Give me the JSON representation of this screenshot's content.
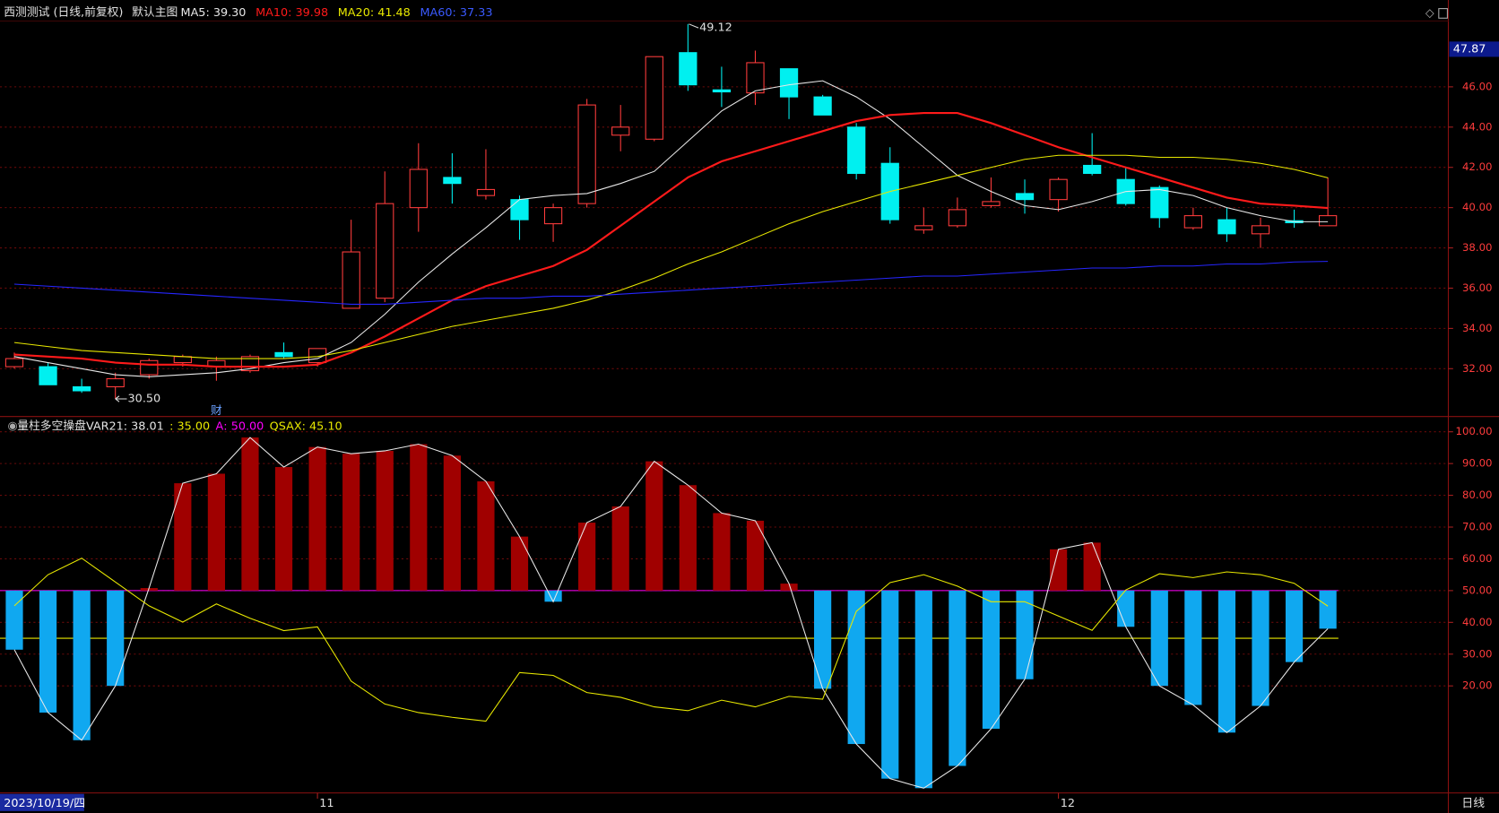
{
  "chart_data": [
    {
      "type": "candlestick",
      "title": "西测测试 (日线,前复权)",
      "subtitle": "默认主图",
      "period": "日线",
      "categories": [
        "2023/10/19/四",
        null,
        null,
        null,
        null,
        null,
        null,
        null,
        null,
        "11",
        null,
        null,
        null,
        null,
        null,
        null,
        null,
        null,
        null,
        null,
        null,
        null,
        null,
        null,
        null,
        null,
        null,
        null,
        null,
        null,
        null,
        "12",
        null,
        null,
        null,
        null,
        null,
        null,
        null,
        null
      ],
      "open": [
        32.1,
        32.1,
        31.1,
        31.1,
        31.7,
        32.3,
        32.1,
        31.9,
        32.8,
        32.3,
        35.0,
        35.5,
        40.0,
        41.5,
        40.6,
        40.4,
        39.2,
        40.2,
        43.6,
        43.4,
        47.7,
        45.85,
        45.7,
        46.9,
        45.5,
        44.0,
        42.2,
        38.9,
        39.1,
        40.1,
        40.7,
        40.4,
        42.1,
        41.4,
        41.0,
        39.0,
        39.4,
        38.7,
        39.35,
        39.1
      ],
      "close": [
        32.5,
        31.2,
        30.9,
        31.5,
        32.4,
        32.6,
        32.4,
        32.6,
        32.6,
        33.0,
        37.8,
        40.2,
        41.9,
        41.2,
        40.9,
        39.4,
        40.0,
        45.1,
        44.0,
        47.5,
        46.1,
        45.75,
        47.2,
        45.5,
        44.6,
        41.7,
        39.4,
        39.1,
        39.9,
        40.3,
        40.4,
        41.4,
        41.7,
        40.2,
        39.5,
        39.6,
        38.7,
        39.1,
        39.25,
        39.6
      ],
      "high": [
        32.8,
        32.3,
        31.5,
        31.8,
        32.5,
        32.7,
        32.6,
        32.7,
        33.3,
        33.0,
        39.4,
        41.8,
        43.2,
        42.7,
        42.9,
        40.6,
        40.2,
        45.4,
        45.1,
        47.5,
        49.12,
        47.0,
        47.8,
        46.9,
        45.6,
        44.2,
        43.0,
        40.0,
        40.5,
        41.5,
        41.4,
        41.5,
        43.7,
        42.0,
        41.1,
        40.0,
        40.0,
        39.5,
        39.9,
        41.5
      ],
      "low": [
        32.0,
        31.2,
        30.8,
        30.5,
        31.5,
        32.1,
        31.4,
        31.8,
        32.5,
        32.1,
        35.0,
        35.3,
        38.8,
        40.2,
        40.4,
        38.4,
        38.3,
        40.0,
        42.8,
        43.3,
        45.8,
        45.0,
        45.1,
        44.4,
        44.6,
        41.4,
        39.2,
        38.7,
        39.0,
        40.0,
        39.7,
        39.8,
        41.6,
        40.1,
        39.0,
        38.9,
        38.3,
        38.0,
        39.0,
        39.1
      ],
      "high_labels": [
        null,
        null,
        null,
        null,
        null,
        null,
        null,
        null,
        null,
        null,
        null,
        null,
        null,
        null,
        null,
        null,
        null,
        null,
        null,
        null,
        "49.12",
        null,
        null,
        null,
        null,
        null,
        null,
        null,
        null,
        null,
        null,
        null,
        null,
        null,
        null,
        null,
        null,
        null,
        null,
        null
      ],
      "low_labels": [
        null,
        null,
        null,
        "30.50",
        null,
        null,
        null,
        null,
        null,
        null,
        null,
        null,
        null,
        null,
        null,
        null,
        null,
        null,
        null,
        null,
        null,
        null,
        null,
        null,
        null,
        null,
        null,
        null,
        null,
        null,
        null,
        null,
        null,
        null,
        null,
        null,
        null,
        null,
        null,
        null
      ],
      "event_labels": [
        null,
        null,
        null,
        null,
        null,
        null,
        "财",
        null,
        null,
        null,
        null,
        null,
        null,
        null,
        null,
        null,
        null,
        null,
        null,
        null,
        null,
        null,
        null,
        null,
        null,
        null,
        null,
        null,
        null,
        null,
        null,
        null,
        null,
        null,
        null,
        null,
        null,
        null,
        null,
        null
      ],
      "up_color": "#ff3c3c",
      "down_color": "#00f0f0",
      "series": [
        {
          "name": "MA5",
          "color": "#e8e8e8",
          "values": [
            32.6,
            32.3,
            32.0,
            31.7,
            31.6,
            31.7,
            31.8,
            32.0,
            32.3,
            32.5,
            33.3,
            34.7,
            36.3,
            37.7,
            39.0,
            40.4,
            40.6,
            40.7,
            41.2,
            41.8,
            43.3,
            44.8,
            45.8,
            46.1,
            46.3,
            45.5,
            44.4,
            43.0,
            41.6,
            40.8,
            40.1,
            39.9,
            40.3,
            40.8,
            40.9,
            40.6,
            40.0,
            39.6,
            39.3,
            39.3
          ],
          "value_labels": [
            null,
            null,
            null,
            null,
            null,
            null,
            null,
            null,
            null,
            null,
            null,
            null,
            null,
            null,
            null,
            null,
            null,
            null,
            null,
            null,
            null,
            null,
            null,
            null,
            null,
            null,
            null,
            null,
            null,
            null,
            null,
            null,
            null,
            null,
            null,
            null,
            null,
            null,
            null,
            "39.30"
          ]
        },
        {
          "name": "MA10",
          "color": "#ff1a1a",
          "values": [
            32.7,
            32.6,
            32.5,
            32.3,
            32.2,
            32.2,
            32.1,
            32.1,
            32.1,
            32.2,
            32.8,
            33.6,
            34.5,
            35.4,
            36.1,
            36.6,
            37.1,
            37.9,
            39.1,
            40.3,
            41.5,
            42.3,
            42.8,
            43.3,
            43.8,
            44.3,
            44.6,
            44.7,
            44.7,
            44.2,
            43.6,
            43.0,
            42.5,
            42.0,
            41.5,
            41.0,
            40.5,
            40.2,
            40.1,
            39.98
          ]
        },
        {
          "name": "MA20",
          "color": "#e8e800",
          "values": [
            33.3,
            33.1,
            32.9,
            32.8,
            32.7,
            32.6,
            32.5,
            32.5,
            32.5,
            32.6,
            32.9,
            33.3,
            33.7,
            34.1,
            34.4,
            34.7,
            35.0,
            35.4,
            35.9,
            36.5,
            37.2,
            37.8,
            38.5,
            39.2,
            39.8,
            40.3,
            40.8,
            41.2,
            41.6,
            42.0,
            42.4,
            42.6,
            42.6,
            42.6,
            42.5,
            42.5,
            42.4,
            42.2,
            41.9,
            41.48
          ]
        },
        {
          "name": "MA60",
          "color": "#2626ff",
          "values": [
            36.2,
            36.1,
            36.0,
            35.9,
            35.8,
            35.7,
            35.6,
            35.5,
            35.4,
            35.3,
            35.2,
            35.2,
            35.3,
            35.4,
            35.5,
            35.5,
            35.6,
            35.6,
            35.7,
            35.8,
            35.9,
            36.0,
            36.1,
            36.2,
            36.3,
            36.4,
            36.5,
            36.6,
            36.6,
            36.7,
            36.8,
            36.9,
            37.0,
            37.0,
            37.1,
            37.1,
            37.2,
            37.2,
            37.3,
            37.33
          ]
        }
      ],
      "cursor_value": {
        "value": 47.87,
        "label": "47.87"
      },
      "ylim": [
        29.67,
        49.27
      ],
      "yticks": [
        {
          "value": 32,
          "label": "32.00"
        },
        {
          "value": 34,
          "label": "34.00"
        },
        {
          "value": 36,
          "label": "36.00"
        },
        {
          "value": 38,
          "label": "38.00"
        },
        {
          "value": 40,
          "label": "40.00"
        },
        {
          "value": 42,
          "label": "42.00"
        },
        {
          "value": 44,
          "label": "44.00"
        },
        {
          "value": 46,
          "label": "46.00"
        }
      ],
      "grid": true
    },
    {
      "type": "bar",
      "title": "量柱多空操盘",
      "bar_base": 50,
      "up_color": "#a00000",
      "down_color": "#10a8f0",
      "series": [
        {
          "name": "VAR21",
          "color": "#e8e8e8",
          "values": [
            31.4,
            11.6,
            2.9,
            20.0,
            50.8,
            83.8,
            86.8,
            98.2,
            88.9,
            95.2,
            93.1,
            94.0,
            96.1,
            92.5,
            84.4,
            67.0,
            46.5,
            71.4,
            76.5,
            90.7,
            83.2,
            74.4,
            72.0,
            52.2,
            19.1,
            1.7,
            -9.2,
            -12.2,
            -5.2,
            6.5,
            22.1,
            63.0,
            65.1,
            38.6,
            20.0,
            14.0,
            5.3,
            13.7,
            27.5,
            38.01
          ]
        },
        {
          "name": "QSAX",
          "color": "#e8e800",
          "values": [
            45.2,
            55.0,
            60.2,
            52.7,
            45.2,
            40.1,
            45.8,
            41.3,
            37.4,
            38.6,
            21.5,
            14.3,
            11.6,
            10.1,
            8.9,
            24.2,
            23.3,
            17.9,
            16.4,
            13.4,
            12.2,
            15.5,
            13.4,
            16.7,
            15.8,
            43.5,
            52.5,
            55.0,
            51.4,
            46.5,
            46.5,
            42.0,
            37.5,
            50.2,
            55.3,
            54.1,
            55.9,
            55.0,
            52.3,
            45.1
          ],
          "value_labels": [
            null,
            null,
            null,
            null,
            null,
            null,
            null,
            null,
            null,
            null,
            null,
            null,
            null,
            null,
            null,
            null,
            null,
            null,
            null,
            null,
            null,
            null,
            null,
            null,
            null,
            null,
            null,
            null,
            null,
            null,
            null,
            null,
            null,
            null,
            null,
            null,
            null,
            null,
            null,
            "45.10"
          ]
        }
      ],
      "hlines": [
        {
          "value": 35,
          "label": "35.00",
          "color": "#e8e800"
        },
        {
          "name": "A",
          "value": 50,
          "label": "50.00",
          "color": "#ff00ff"
        }
      ],
      "ylim": [
        -13.7,
        104.5
      ],
      "yticks": [
        {
          "value": 20,
          "label": "20.00"
        },
        {
          "value": 30,
          "label": "30.00"
        },
        {
          "value": 40,
          "label": "40.00"
        },
        {
          "value": 50,
          "label": "50.00"
        },
        {
          "value": 60,
          "label": "60.00"
        },
        {
          "value": 70,
          "label": "70.00"
        },
        {
          "value": 80,
          "label": "80.00"
        },
        {
          "value": 90,
          "label": "90.00"
        },
        {
          "value": 100,
          "label": "100.00"
        }
      ],
      "grid": true
    }
  ]
}
